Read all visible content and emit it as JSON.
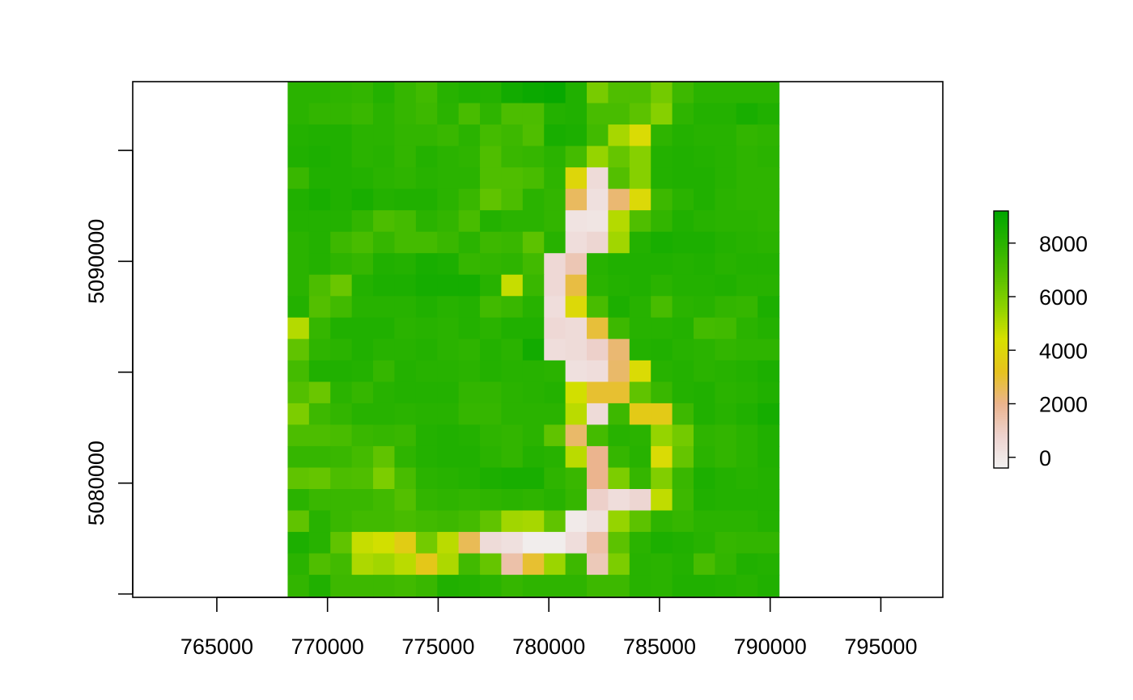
{
  "chart_data": {
    "type": "heatmap",
    "title": "",
    "xlabel": "",
    "ylabel": "",
    "xlim": [
      761200,
      797800
    ],
    "ylim": [
      5074850,
      5098100
    ],
    "xticks": [
      765000,
      770000,
      775000,
      780000,
      785000,
      790000,
      795000
    ],
    "xtick_labels": [
      "765000",
      "770000",
      "775000",
      "780000",
      "785000",
      "790000",
      "795000"
    ],
    "yticks": [
      5075000,
      5080000,
      5085000,
      5090000,
      5095000
    ],
    "ytick_labels": [
      "",
      "5080000",
      "",
      "5090000",
      ""
    ],
    "grid": false,
    "legend": {
      "position": "right",
      "range": [
        -400,
        9200
      ],
      "ticks": [
        0,
        2000,
        4000,
        6000,
        8000
      ],
      "tick_labels": [
        "0",
        "2000",
        "4000",
        "6000",
        "8000"
      ],
      "colors": [
        "#F2F2F2",
        "#EDD3CF",
        "#EBB48E",
        "#E6C21E",
        "#D8E000",
        "#8FD300",
        "#57C000",
        "#2AB300",
        "#00A600"
      ]
    },
    "raster": {
      "x_range": [
        768200,
        790400
      ],
      "y_range": [
        5074900,
        5098100
      ],
      "columns": 23,
      "rows": 24,
      "value_rows_top_to_bottom": [
        [
          8000,
          8000,
          7900,
          7800,
          8200,
          7700,
          7400,
          8100,
          8300,
          8200,
          8700,
          8900,
          9000,
          8300,
          6100,
          7000,
          7000,
          6200,
          7500,
          8000,
          8000,
          8000,
          8000
        ],
        [
          8000,
          7800,
          7800,
          7600,
          8000,
          7700,
          7500,
          8000,
          7200,
          7900,
          7100,
          7100,
          8200,
          8300,
          7200,
          7200,
          6700,
          5800,
          7900,
          8200,
          8200,
          8500,
          8300
        ],
        [
          8200,
          8300,
          8300,
          8000,
          8000,
          7800,
          7800,
          7600,
          8000,
          7300,
          7500,
          7000,
          8500,
          8400,
          7400,
          5200,
          4200,
          7900,
          8200,
          8100,
          8100,
          7800,
          7900
        ],
        [
          8300,
          8400,
          8300,
          8000,
          8100,
          7800,
          8200,
          8000,
          7900,
          7000,
          7600,
          7700,
          8000,
          7300,
          5500,
          6500,
          5800,
          8200,
          8300,
          8200,
          8100,
          7900,
          8000
        ],
        [
          7600,
          8300,
          8300,
          8200,
          8000,
          7900,
          8100,
          8000,
          8000,
          7000,
          7000,
          7200,
          7900,
          4000,
          500,
          6900,
          5800,
          8200,
          8300,
          8300,
          8100,
          7900,
          7900
        ],
        [
          8300,
          8500,
          8300,
          8500,
          8200,
          8300,
          8300,
          8000,
          7600,
          6600,
          7100,
          8000,
          7800,
          2500,
          300,
          2300,
          4100,
          7500,
          8000,
          8300,
          8000,
          7900,
          7900
        ],
        [
          8200,
          8200,
          8200,
          7800,
          7100,
          7300,
          8000,
          7800,
          7200,
          8200,
          8000,
          8000,
          7800,
          200,
          100,
          5000,
          7000,
          7800,
          8300,
          8100,
          8000,
          8000,
          7900
        ],
        [
          8000,
          8200,
          7500,
          7200,
          7700,
          7300,
          7300,
          7600,
          8000,
          7500,
          7600,
          6700,
          8100,
          400,
          700,
          5300,
          8200,
          8500,
          8400,
          8400,
          8200,
          8100,
          8000
        ],
        [
          8000,
          8200,
          7900,
          7700,
          8300,
          8200,
          8500,
          8400,
          7700,
          7800,
          7900,
          7400,
          600,
          1300,
          8100,
          8300,
          8300,
          8300,
          8200,
          8300,
          8100,
          8200,
          8200
        ],
        [
          8000,
          7100,
          6400,
          8200,
          8400,
          8400,
          8600,
          8600,
          8600,
          8100,
          4700,
          7600,
          600,
          2800,
          8000,
          8200,
          8300,
          8000,
          8200,
          8200,
          8300,
          8100,
          8100
        ],
        [
          8200,
          6900,
          7400,
          8100,
          8100,
          8100,
          8300,
          8100,
          8200,
          7400,
          7600,
          8100,
          400,
          4100,
          7200,
          8400,
          8100,
          7200,
          8000,
          8100,
          7800,
          7700,
          8400
        ],
        [
          5000,
          7700,
          8300,
          8300,
          8300,
          8000,
          8100,
          8000,
          8200,
          8000,
          8300,
          8300,
          600,
          500,
          2900,
          7500,
          8100,
          8100,
          8200,
          7300,
          7400,
          8000,
          8200
        ],
        [
          6600,
          7900,
          8000,
          8300,
          8100,
          8100,
          8200,
          8000,
          7900,
          8200,
          8000,
          8700,
          400,
          500,
          900,
          2300,
          8200,
          8300,
          8100,
          8000,
          7800,
          7900,
          7900
        ],
        [
          7300,
          8300,
          8300,
          8200,
          7700,
          8200,
          8100,
          8100,
          8000,
          8200,
          8100,
          8100,
          8000,
          300,
          400,
          2400,
          4200,
          8100,
          8200,
          8000,
          8100,
          8200,
          8400
        ],
        [
          6900,
          6400,
          8000,
          7700,
          8100,
          8200,
          8200,
          8200,
          7800,
          7800,
          8000,
          8100,
          8200,
          4500,
          3000,
          3000,
          6600,
          7600,
          8200,
          8300,
          8000,
          8100,
          8300
        ],
        [
          6000,
          7500,
          7800,
          8100,
          8100,
          8000,
          8100,
          8100,
          7700,
          7700,
          8000,
          8000,
          8000,
          4900,
          500,
          7500,
          3500,
          3500,
          7500,
          8300,
          8100,
          8300,
          8600
        ],
        [
          7100,
          7100,
          7200,
          7600,
          7700,
          7600,
          8200,
          8300,
          8200,
          7900,
          7800,
          8000,
          6600,
          2400,
          7300,
          8100,
          8000,
          5500,
          6200,
          7900,
          7800,
          8000,
          8300
        ],
        [
          7700,
          7700,
          7600,
          7300,
          6600,
          7900,
          8200,
          8300,
          8300,
          8000,
          7800,
          8200,
          8100,
          4900,
          2000,
          7700,
          8100,
          4200,
          6500,
          8000,
          7800,
          8000,
          8300
        ],
        [
          6600,
          6500,
          7100,
          7000,
          6000,
          7200,
          8000,
          8100,
          8200,
          8400,
          8500,
          8500,
          7900,
          7600,
          2000,
          6000,
          7700,
          5900,
          7600,
          8400,
          8200,
          8100,
          8200
        ],
        [
          8000,
          7600,
          7600,
          7600,
          7400,
          6900,
          7800,
          7900,
          7800,
          7900,
          8000,
          7900,
          8100,
          7700,
          900,
          400,
          700,
          4800,
          7500,
          8300,
          8200,
          8200,
          8200
        ],
        [
          6600,
          8100,
          7600,
          7400,
          7400,
          7200,
          7400,
          7500,
          7300,
          6600,
          5300,
          5200,
          6600,
          -100,
          300,
          5500,
          6700,
          7900,
          7700,
          8000,
          8000,
          8000,
          8200
        ],
        [
          8400,
          8100,
          6600,
          4700,
          4500,
          3600,
          6200,
          4900,
          2600,
          500,
          300,
          -200,
          -200,
          400,
          1500,
          6700,
          8000,
          8400,
          8300,
          8100,
          7700,
          7800,
          7800
        ],
        [
          8000,
          7000,
          7400,
          5100,
          5300,
          4900,
          3400,
          5100,
          7400,
          6500,
          1500,
          3000,
          5400,
          7500,
          1200,
          6000,
          8100,
          8000,
          8200,
          7200,
          7800,
          8300,
          8200
        ],
        [
          7800,
          8300,
          7500,
          7500,
          7500,
          7400,
          7600,
          8300,
          8200,
          8000,
          7700,
          7900,
          7900,
          7900,
          7500,
          7500,
          8100,
          8000,
          8300,
          8300,
          8200,
          8100,
          8300
        ]
      ]
    }
  }
}
